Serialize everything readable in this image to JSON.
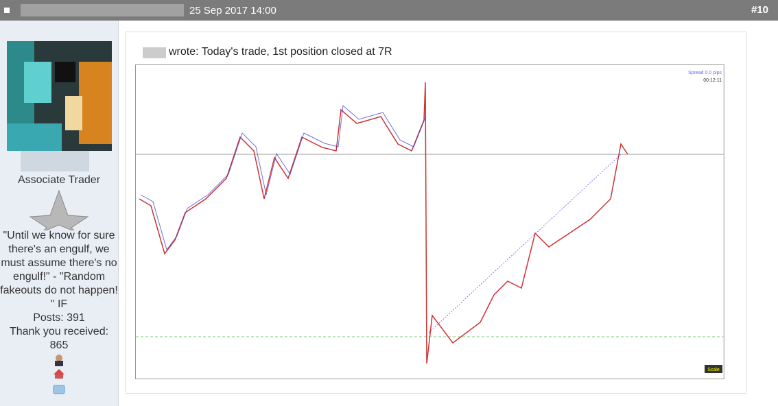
{
  "header": {
    "date": "25 Sep 2017 14:00",
    "post_number": "#10"
  },
  "user": {
    "rank": "Associate Trader",
    "signature": "\"Until we know for sure there's an engulf, we must assume there's no engulf!\" - \"Random fakeouts do not happen! \" IF",
    "posts": "Posts: 391",
    "thanks_label": "Thank you received:",
    "thanks_count": "865"
  },
  "post": {
    "quote_text": "wrote: Today's trade, 1st position closed at 7R",
    "chart": {
      "spread": "Spread 0.0 pips",
      "timer": "00:12:11",
      "scale_button": "Scale"
    }
  }
}
